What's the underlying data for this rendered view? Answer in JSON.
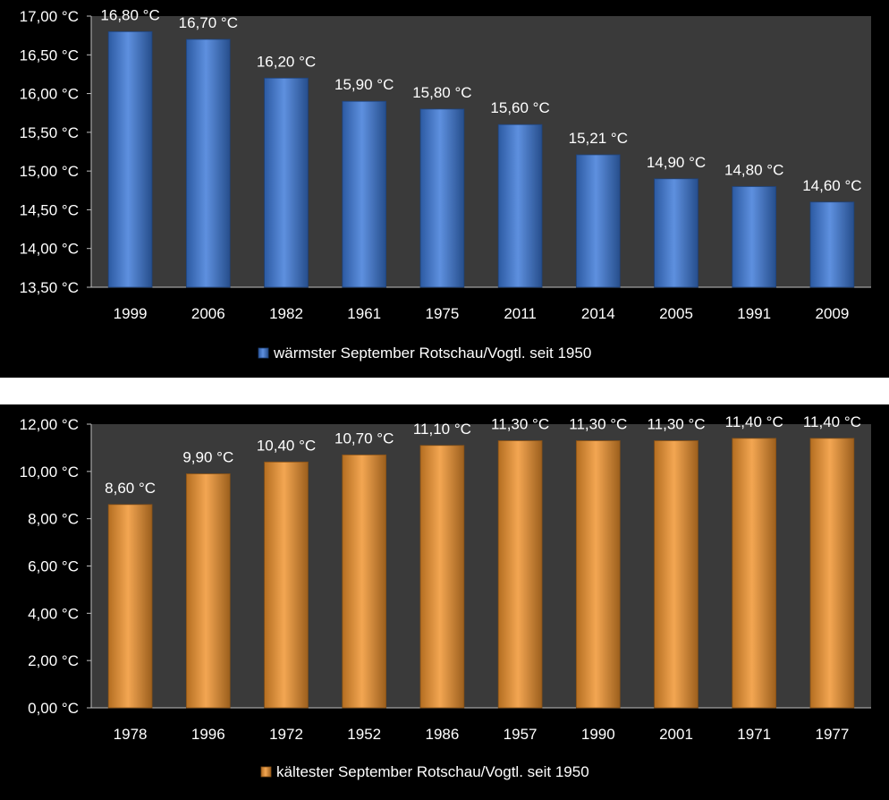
{
  "chart_data": [
    {
      "type": "bar",
      "categories": [
        "1999",
        "2006",
        "1982",
        "1961",
        "1975",
        "2011",
        "2014",
        "2005",
        "1991",
        "2009"
      ],
      "values": [
        16.8,
        16.7,
        16.2,
        15.9,
        15.8,
        15.6,
        15.21,
        14.9,
        14.8,
        14.6
      ],
      "data_labels": [
        "16,80 °C",
        "16,70 °C",
        "16,20 °C",
        "15,90 °C",
        "15,80 °C",
        "15,60 °C",
        "15,21 °C",
        "14,90 °C",
        "14,80 °C",
        "14,60 °C"
      ],
      "ylim": [
        13.5,
        17.0
      ],
      "yticks": [
        13.5,
        14.0,
        14.5,
        15.0,
        15.5,
        16.0,
        16.5,
        17.0
      ],
      "ytick_labels": [
        "13,50 °C",
        "14,00 °C",
        "14,50 °C",
        "15,00 °C",
        "15,50 °C",
        "16,00 °C",
        "16,50 °C",
        "17,00 °C"
      ],
      "legend": "wärmster September Rotschau/Vogtl. seit 1950",
      "legend_position": "bottom",
      "bar_color": "#3b78d8",
      "plot_bg": "#3a3a3a",
      "grid": false
    },
    {
      "type": "bar",
      "categories": [
        "1978",
        "1996",
        "1972",
        "1952",
        "1986",
        "1957",
        "1990",
        "2001",
        "1971",
        "1977"
      ],
      "values": [
        8.6,
        9.9,
        10.4,
        10.7,
        11.1,
        11.3,
        11.3,
        11.3,
        11.4,
        11.4
      ],
      "data_labels": [
        "8,60 °C",
        "9,90 °C",
        "10,40 °C",
        "10,70 °C",
        "11,10 °C",
        "11,30 °C",
        "11,30 °C",
        "11,30 °C",
        "11,40 °C",
        "11,40 °C"
      ],
      "ylim": [
        0,
        12.0
      ],
      "yticks": [
        0,
        2,
        4,
        6,
        8,
        10,
        12
      ],
      "ytick_labels": [
        "0,00 °C",
        "2,00 °C",
        "4,00 °C",
        "6,00 °C",
        "8,00 °C",
        "10,00 °C",
        "12,00 °C"
      ],
      "legend": "kältester September Rotschau/Vogtl. seit 1950",
      "legend_position": "bottom",
      "bar_color": "#f0922c",
      "plot_bg": "#3a3a3a",
      "grid": false
    }
  ]
}
